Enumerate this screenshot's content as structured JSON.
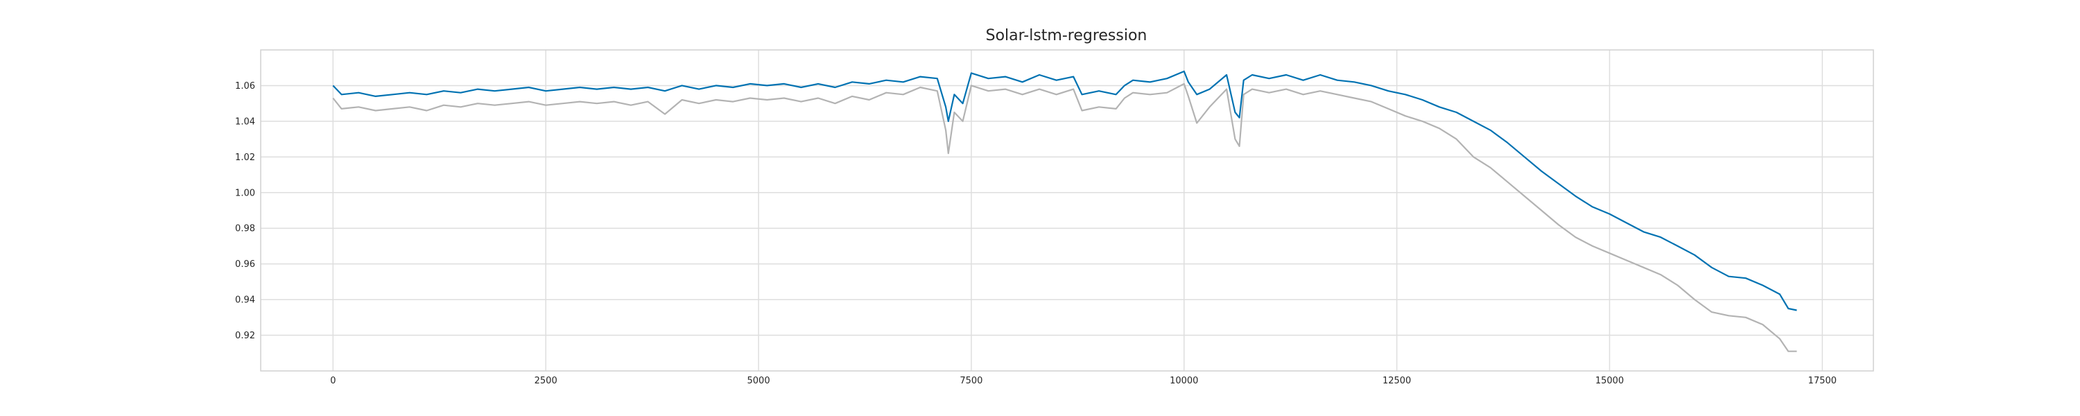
{
  "chart_data": {
    "type": "line",
    "title": "Solar-lstm-regression",
    "xlabel": "",
    "ylabel": "",
    "xlim": [
      -850,
      18100
    ],
    "ylim": [
      0.9,
      1.08
    ],
    "xticks": [
      0,
      2500,
      5000,
      7500,
      10000,
      12500,
      15000,
      17500
    ],
    "yticks": [
      0.92,
      0.94,
      0.96,
      0.98,
      1.0,
      1.02,
      1.04,
      1.06
    ],
    "xtick_labels": [
      "0",
      "2500",
      "5000",
      "7500",
      "10000",
      "12500",
      "15000",
      "17500"
    ],
    "ytick_labels": [
      "0.92",
      "0.94",
      "0.96",
      "0.98",
      "1.00",
      "1.02",
      "1.04",
      "1.06"
    ],
    "grid": true,
    "legend": "none",
    "series": [
      {
        "color": "#0072B2",
        "x": [
          0,
          100,
          300,
          500,
          700,
          900,
          1100,
          1300,
          1500,
          1700,
          1900,
          2100,
          2300,
          2500,
          2700,
          2900,
          3100,
          3300,
          3500,
          3700,
          3900,
          4100,
          4300,
          4500,
          4700,
          4900,
          5100,
          5300,
          5500,
          5700,
          5900,
          6100,
          6300,
          6500,
          6700,
          6900,
          7100,
          7200,
          7230,
          7300,
          7400,
          7500,
          7700,
          7900,
          8100,
          8300,
          8500,
          8700,
          8800,
          9000,
          9200,
          9300,
          9400,
          9600,
          9800,
          10000,
          10050,
          10150,
          10300,
          10500,
          10600,
          10650,
          10700,
          10800,
          11000,
          11200,
          11400,
          11600,
          11800,
          12000,
          12200,
          12400,
          12600,
          12800,
          13000,
          13200,
          13400,
          13600,
          13800,
          14000,
          14200,
          14400,
          14600,
          14800,
          15000,
          15200,
          15400,
          15600,
          15800,
          16000,
          16200,
          16400,
          16600,
          16800,
          17000,
          17100,
          17200
        ],
        "y": [
          1.06,
          1.055,
          1.056,
          1.054,
          1.055,
          1.056,
          1.055,
          1.057,
          1.056,
          1.058,
          1.057,
          1.058,
          1.059,
          1.057,
          1.058,
          1.059,
          1.058,
          1.059,
          1.058,
          1.059,
          1.057,
          1.06,
          1.058,
          1.06,
          1.059,
          1.061,
          1.06,
          1.061,
          1.059,
          1.061,
          1.059,
          1.062,
          1.061,
          1.063,
          1.062,
          1.065,
          1.064,
          1.048,
          1.04,
          1.055,
          1.05,
          1.067,
          1.064,
          1.065,
          1.062,
          1.066,
          1.063,
          1.065,
          1.055,
          1.057,
          1.055,
          1.06,
          1.063,
          1.062,
          1.064,
          1.068,
          1.062,
          1.055,
          1.058,
          1.066,
          1.045,
          1.042,
          1.063,
          1.066,
          1.064,
          1.066,
          1.063,
          1.066,
          1.063,
          1.062,
          1.06,
          1.057,
          1.055,
          1.052,
          1.048,
          1.045,
          1.04,
          1.035,
          1.028,
          1.02,
          1.012,
          1.005,
          0.998,
          0.992,
          0.988,
          0.983,
          0.978,
          0.975,
          0.97,
          0.965,
          0.958,
          0.953,
          0.952,
          0.948,
          0.943,
          0.935,
          0.934
        ]
      },
      {
        "color": "#b3b3b3",
        "x": [
          0,
          100,
          300,
          500,
          700,
          900,
          1100,
          1300,
          1500,
          1700,
          1900,
          2100,
          2300,
          2500,
          2700,
          2900,
          3100,
          3300,
          3500,
          3700,
          3900,
          4100,
          4300,
          4500,
          4700,
          4900,
          5100,
          5300,
          5500,
          5700,
          5900,
          6100,
          6300,
          6500,
          6700,
          6900,
          7100,
          7200,
          7230,
          7300,
          7400,
          7500,
          7700,
          7900,
          8100,
          8300,
          8500,
          8700,
          8800,
          9000,
          9200,
          9300,
          9400,
          9600,
          9800,
          10000,
          10050,
          10150,
          10300,
          10500,
          10600,
          10650,
          10700,
          10800,
          11000,
          11200,
          11400,
          11600,
          11800,
          12000,
          12200,
          12400,
          12600,
          12800,
          13000,
          13200,
          13400,
          13600,
          13800,
          14000,
          14200,
          14400,
          14600,
          14800,
          15000,
          15200,
          15400,
          15600,
          15800,
          16000,
          16200,
          16400,
          16600,
          16800,
          17000,
          17100,
          17200
        ],
        "y": [
          1.053,
          1.047,
          1.048,
          1.046,
          1.047,
          1.048,
          1.046,
          1.049,
          1.048,
          1.05,
          1.049,
          1.05,
          1.051,
          1.049,
          1.05,
          1.051,
          1.05,
          1.051,
          1.049,
          1.051,
          1.044,
          1.052,
          1.05,
          1.052,
          1.051,
          1.053,
          1.052,
          1.053,
          1.051,
          1.053,
          1.05,
          1.054,
          1.052,
          1.056,
          1.055,
          1.059,
          1.057,
          1.035,
          1.022,
          1.045,
          1.04,
          1.06,
          1.057,
          1.058,
          1.055,
          1.058,
          1.055,
          1.058,
          1.046,
          1.048,
          1.047,
          1.053,
          1.056,
          1.055,
          1.056,
          1.061,
          1.054,
          1.039,
          1.048,
          1.058,
          1.03,
          1.026,
          1.055,
          1.058,
          1.056,
          1.058,
          1.055,
          1.057,
          1.055,
          1.053,
          1.051,
          1.047,
          1.043,
          1.04,
          1.036,
          1.03,
          1.02,
          1.014,
          1.006,
          0.998,
          0.99,
          0.982,
          0.975,
          0.97,
          0.966,
          0.962,
          0.958,
          0.954,
          0.948,
          0.94,
          0.933,
          0.931,
          0.93,
          0.926,
          0.918,
          0.911,
          0.911
        ]
      }
    ]
  }
}
